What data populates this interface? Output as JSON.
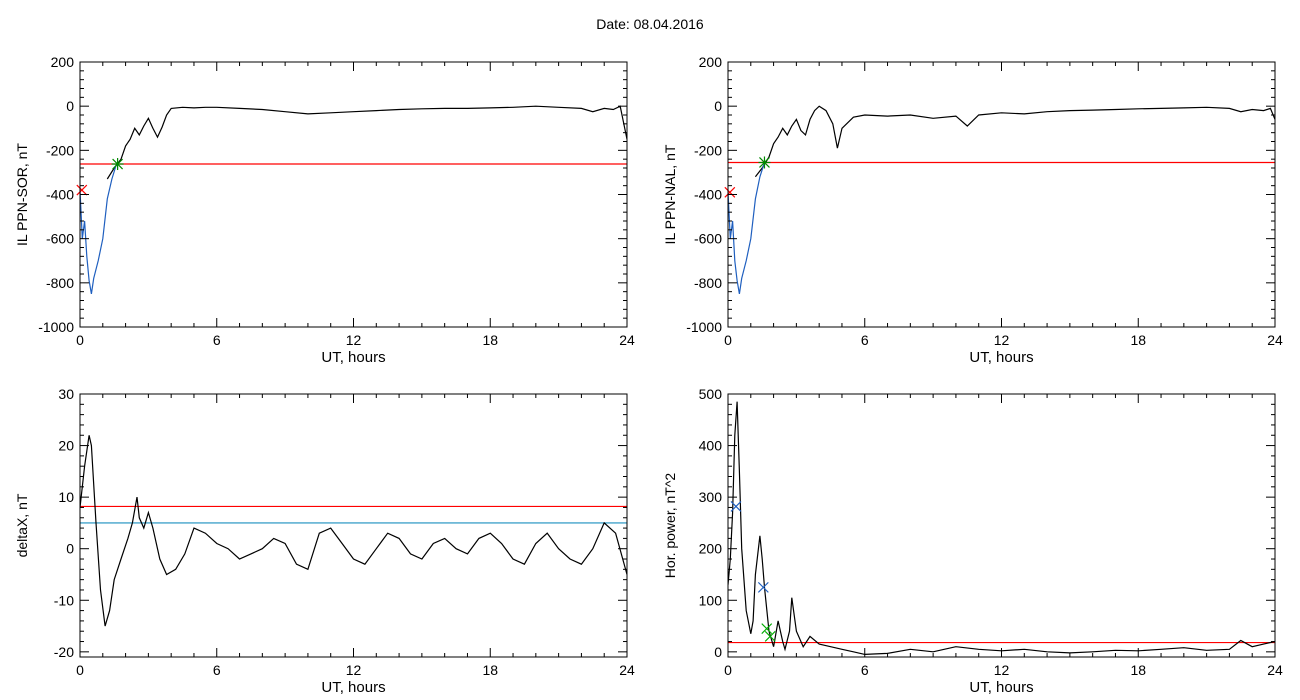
{
  "page_title": "Date:  08.04.2016",
  "chart_data": [
    {
      "type": "line",
      "xlabel": "UT, hours",
      "ylabel": "IL PPN-SOR, nT",
      "xlim": [
        0,
        24
      ],
      "ylim": [
        -1000,
        200
      ],
      "xticks": [
        0,
        6,
        12,
        18,
        24
      ],
      "yticks": [
        200,
        0,
        -200,
        -400,
        -600,
        -800,
        -1000
      ],
      "hlines": [
        {
          "y": -262,
          "color": "#ff0000"
        }
      ],
      "series": [
        {
          "color": "#000000",
          "x": [
            1.2,
            1.5,
            1.8,
            2.0,
            2.2,
            2.4,
            2.6,
            2.8,
            3.0,
            3.2,
            3.4,
            3.6,
            3.8,
            4.0,
            4.5,
            5.0,
            5.5,
            6.0,
            7,
            8,
            9,
            10,
            11,
            12,
            13,
            14,
            15,
            16,
            17,
            18,
            19,
            20,
            21,
            22,
            22.5,
            23.0,
            23.4,
            23.7,
            24.0
          ],
          "y": [
            -330,
            -280,
            -240,
            -180,
            -150,
            -100,
            -130,
            -90,
            -55,
            -100,
            -140,
            -95,
            -40,
            -10,
            -5,
            -8,
            -5,
            -5,
            -10,
            -15,
            -25,
            -35,
            -30,
            -25,
            -20,
            -15,
            -12,
            -10,
            -10,
            -8,
            -5,
            0,
            -5,
            -10,
            -25,
            -10,
            -15,
            0,
            -150
          ]
        },
        {
          "color": "#1f5fbf",
          "x": [
            0.0,
            0.1,
            0.2,
            0.3,
            0.4,
            0.5,
            0.6,
            0.8,
            1.0,
            1.2,
            1.4,
            1.6
          ],
          "y": [
            -380,
            -600,
            -520,
            -680,
            -790,
            -850,
            -780,
            -700,
            -600,
            -420,
            -330,
            -262
          ]
        }
      ],
      "markers": [
        {
          "x": 1.65,
          "y": -262,
          "color": "#008800",
          "symbol": "star"
        },
        {
          "x": 0.08,
          "y": -380,
          "color": "#ff0000",
          "symbol": "x"
        }
      ]
    },
    {
      "type": "line",
      "xlabel": "UT, hours",
      "ylabel": "IL PPN-NAL, nT",
      "xlim": [
        0,
        24
      ],
      "ylim": [
        -1000,
        200
      ],
      "xticks": [
        0,
        6,
        12,
        18,
        24
      ],
      "yticks": [
        200,
        0,
        -200,
        -400,
        -600,
        -800,
        -1000
      ],
      "hlines": [
        {
          "y": -255,
          "color": "#ff0000"
        }
      ],
      "series": [
        {
          "color": "#000000",
          "x": [
            1.2,
            1.5,
            1.8,
            2.0,
            2.2,
            2.4,
            2.6,
            2.8,
            3.0,
            3.2,
            3.4,
            3.6,
            3.8,
            4.0,
            4.3,
            4.6,
            4.8,
            5.0,
            5.5,
            6.0,
            7,
            8,
            9,
            10,
            10.5,
            11,
            12,
            13,
            14,
            15,
            16,
            17,
            18,
            19,
            20,
            21,
            22,
            22.5,
            23.0,
            23.5,
            23.8,
            24.0
          ],
          "y": [
            -320,
            -280,
            -230,
            -170,
            -140,
            -100,
            -130,
            -90,
            -60,
            -110,
            -130,
            -60,
            -20,
            0,
            -20,
            -80,
            -190,
            -100,
            -50,
            -40,
            -45,
            -40,
            -55,
            -45,
            -90,
            -40,
            -30,
            -35,
            -25,
            -20,
            -18,
            -15,
            -12,
            -10,
            -8,
            -5,
            -10,
            -25,
            -15,
            -20,
            -10,
            -60
          ]
        },
        {
          "color": "#1f5fbf",
          "x": [
            0.0,
            0.1,
            0.2,
            0.3,
            0.4,
            0.5,
            0.6,
            0.8,
            1.0,
            1.2,
            1.4,
            1.6
          ],
          "y": [
            -390,
            -600,
            -520,
            -700,
            -790,
            -850,
            -780,
            -700,
            -600,
            -420,
            -320,
            -255
          ]
        }
      ],
      "markers": [
        {
          "x": 1.6,
          "y": -255,
          "color": "#008800",
          "symbol": "star"
        },
        {
          "x": 0.08,
          "y": -390,
          "color": "#ff0000",
          "symbol": "x"
        }
      ]
    },
    {
      "type": "line",
      "xlabel": "UT, hours",
      "ylabel": "deltaX, nT",
      "xlim": [
        0,
        24
      ],
      "ylim": [
        -21,
        30
      ],
      "xticks": [
        0,
        6,
        12,
        18,
        24
      ],
      "yticks": [
        30,
        20,
        10,
        0,
        -10,
        -20
      ],
      "hlines": [
        {
          "y": 8.2,
          "color": "#ff0000"
        },
        {
          "y": 5.0,
          "color": "#1a8fbf"
        }
      ],
      "series": [
        {
          "color": "#000000",
          "x": [
            0.0,
            0.2,
            0.4,
            0.5,
            0.7,
            0.9,
            1.1,
            1.3,
            1.5,
            1.8,
            2.1,
            2.3,
            2.5,
            2.6,
            2.8,
            3.0,
            3.2,
            3.5,
            3.8,
            4.2,
            4.6,
            5.0,
            5.5,
            6.0,
            6.5,
            7.0,
            7.5,
            8.0,
            8.5,
            9.0,
            9.5,
            10.0,
            10.5,
            11.0,
            11.5,
            12.0,
            12.5,
            13.0,
            13.5,
            14.0,
            14.5,
            15.0,
            15.5,
            16.0,
            16.5,
            17.0,
            17.5,
            18.0,
            18.5,
            19.0,
            19.5,
            20.0,
            20.5,
            21.0,
            21.5,
            22.0,
            22.5,
            23.0,
            23.5,
            24.0
          ],
          "y": [
            8,
            16,
            22,
            20,
            5,
            -8,
            -15,
            -12,
            -6,
            -2,
            2,
            5,
            10,
            6,
            4,
            7,
            4,
            -2,
            -5,
            -4,
            -1,
            4,
            3,
            1,
            0,
            -2,
            -1,
            0,
            2,
            1,
            -3,
            -4,
            3,
            4,
            1,
            -2,
            -3,
            0,
            3,
            2,
            -1,
            -2,
            1,
            2,
            0,
            -1,
            2,
            3,
            1,
            -2,
            -3,
            1,
            3,
            0,
            -2,
            -3,
            0,
            5,
            3,
            -5
          ]
        }
      ]
    },
    {
      "type": "line",
      "xlabel": "UT, hours",
      "ylabel": "Hor. power, nT^2",
      "xlim": [
        0,
        24
      ],
      "ylim": [
        -10,
        500
      ],
      "xticks": [
        0,
        6,
        12,
        18,
        24
      ],
      "yticks": [
        500,
        400,
        300,
        200,
        100,
        0
      ],
      "hlines": [
        {
          "y": 18,
          "color": "#ff0000"
        }
      ],
      "series": [
        {
          "color": "#000000",
          "x": [
            0.0,
            0.1,
            0.2,
            0.3,
            0.4,
            0.5,
            0.6,
            0.8,
            1.0,
            1.1,
            1.2,
            1.4,
            1.5,
            1.6,
            1.8,
            2.0,
            2.2,
            2.4,
            2.5,
            2.7,
            2.8,
            3.0,
            3.3,
            3.6,
            4.0,
            4.5,
            5.0,
            5.5,
            6.0,
            7,
            8,
            9,
            10,
            11,
            12,
            13,
            14,
            15,
            16,
            17,
            18,
            19,
            20,
            21,
            22,
            22.5,
            23.0,
            23.5,
            24.0
          ],
          "y": [
            130,
            180,
            270,
            420,
            485,
            350,
            200,
            80,
            35,
            60,
            150,
            225,
            180,
            125,
            40,
            10,
            60,
            20,
            5,
            40,
            105,
            40,
            10,
            30,
            15,
            10,
            5,
            0,
            -5,
            -3,
            5,
            0,
            10,
            5,
            2,
            5,
            0,
            -2,
            0,
            3,
            2,
            5,
            8,
            3,
            5,
            22,
            10,
            15,
            20
          ]
        }
      ],
      "markers": [
        {
          "x": 0.35,
          "y": 282,
          "color": "#1f5fbf",
          "symbol": "x"
        },
        {
          "x": 1.55,
          "y": 125,
          "color": "#1f5fbf",
          "symbol": "x"
        },
        {
          "x": 1.7,
          "y": 45,
          "color": "#00aa00",
          "symbol": "x"
        },
        {
          "x": 1.85,
          "y": 30,
          "color": "#00aa00",
          "symbol": "x"
        }
      ]
    }
  ]
}
